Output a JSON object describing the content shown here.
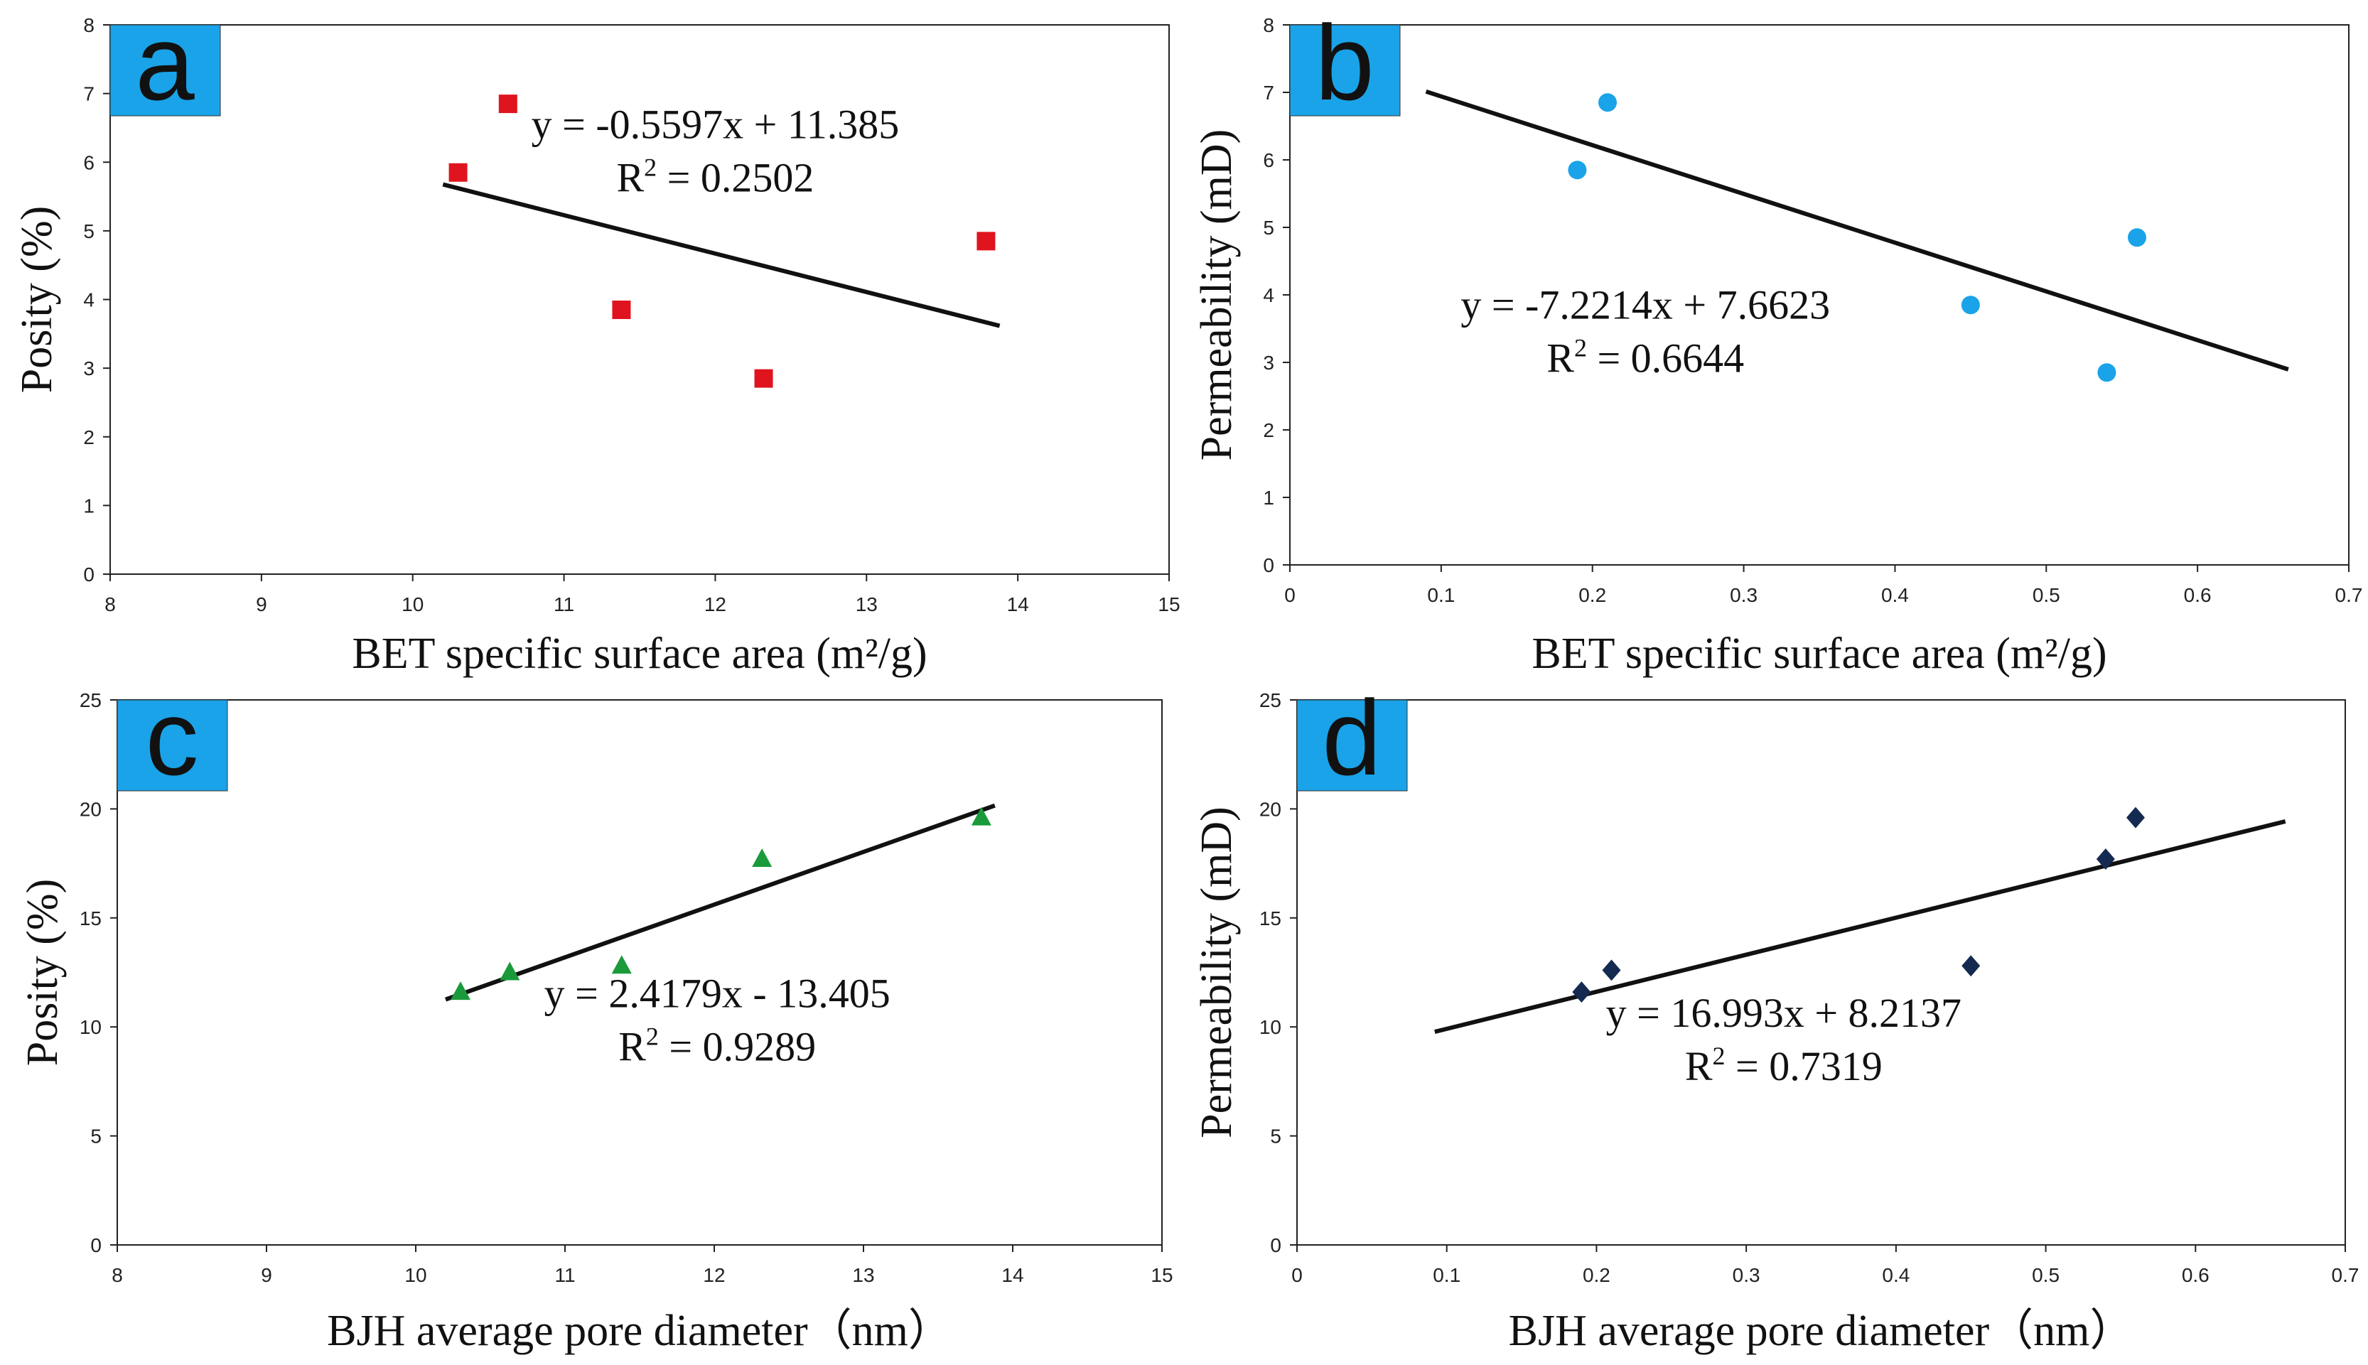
{
  "chart_data": [
    {
      "id": "a",
      "type": "scatter",
      "panel_label": "a",
      "label_box_color": "#1aa3e8",
      "xlabel": "BET specific surface area (m²/g)",
      "ylabel": "Posity (%)",
      "xlim": [
        8,
        15
      ],
      "ylim": [
        0,
        8
      ],
      "xticks": [
        8,
        9,
        10,
        11,
        12,
        13,
        14,
        15
      ],
      "yticks": [
        0,
        1,
        2,
        3,
        4,
        5,
        6,
        7,
        8
      ],
      "marker": "square",
      "marker_color": "#e0141e",
      "points": [
        {
          "x": 10.3,
          "y": 5.85
        },
        {
          "x": 10.63,
          "y": 6.85
        },
        {
          "x": 11.38,
          "y": 3.85
        },
        {
          "x": 12.32,
          "y": 2.85
        },
        {
          "x": 13.79,
          "y": 4.85
        }
      ],
      "trendline": {
        "slope": -0.5597,
        "intercept": 11.385,
        "x_range": [
          10.2,
          13.88
        ]
      },
      "equation": "y = -0.5597x + 11.385",
      "r2_prefix": "R",
      "r2_sup": "2",
      "r2_value": " = 0.2502",
      "annotation_anchor": {
        "x": 12.0,
        "y": 6.35
      }
    },
    {
      "id": "b",
      "type": "scatter",
      "panel_label": "b",
      "label_box_color": "#1aa3e8",
      "xlabel": "BET specific surface area (m²/g)",
      "ylabel": "Permeability (mD)",
      "xlim": [
        0,
        0.7
      ],
      "ylim": [
        0,
        8
      ],
      "xticks": [
        0,
        0.1,
        0.2,
        0.3,
        0.4,
        0.5,
        0.6,
        0.7
      ],
      "yticks": [
        0,
        1,
        2,
        3,
        4,
        5,
        6,
        7,
        8
      ],
      "marker": "circle",
      "marker_color": "#1aa3e8",
      "points": [
        {
          "x": 0.19,
          "y": 5.85
        },
        {
          "x": 0.21,
          "y": 6.85
        },
        {
          "x": 0.45,
          "y": 3.85
        },
        {
          "x": 0.54,
          "y": 2.85
        },
        {
          "x": 0.56,
          "y": 4.85
        }
      ],
      "trendline": {
        "slope": -7.2214,
        "intercept": 7.6623,
        "x_range": [
          0.09,
          0.66
        ]
      },
      "equation": "y = -7.2214x + 7.6623",
      "r2_prefix": "R",
      "r2_sup": "2",
      "r2_value": " = 0.6644",
      "annotation_anchor": {
        "x": 0.235,
        "y": 3.65
      }
    },
    {
      "id": "c",
      "type": "scatter",
      "panel_label": "c",
      "label_box_color": "#1aa3e8",
      "xlabel": "BJH average pore diameter（nm）",
      "ylabel": "Posity (%)",
      "xlim": [
        8,
        15
      ],
      "ylim": [
        0,
        25
      ],
      "xticks": [
        8,
        9,
        10,
        11,
        12,
        13,
        14,
        15
      ],
      "yticks": [
        0,
        5,
        10,
        15,
        20,
        25
      ],
      "marker": "triangle",
      "marker_color": "#1a9a3a",
      "points": [
        {
          "x": 10.3,
          "y": 11.6
        },
        {
          "x": 10.63,
          "y": 12.5
        },
        {
          "x": 11.38,
          "y": 12.8
        },
        {
          "x": 12.32,
          "y": 17.7
        },
        {
          "x": 13.79,
          "y": 19.6
        }
      ],
      "trendline": {
        "slope": 2.4179,
        "intercept": -13.405,
        "x_range": [
          10.2,
          13.88
        ]
      },
      "equation": "y = 2.4179x - 13.405",
      "r2_prefix": "R",
      "r2_sup": "2",
      "r2_value": " = 0.9289",
      "annotation_anchor": {
        "x": 12.02,
        "y": 10.9
      }
    },
    {
      "id": "d",
      "type": "scatter",
      "panel_label": "d",
      "label_box_color": "#1aa3e8",
      "xlabel": "BJH average pore diameter（nm）",
      "ylabel": "Permeability (mD)",
      "xlim": [
        0,
        0.7
      ],
      "ylim": [
        0,
        25
      ],
      "xticks": [
        0,
        0.1,
        0.2,
        0.3,
        0.4,
        0.5,
        0.6,
        0.7
      ],
      "yticks": [
        0,
        5,
        10,
        15,
        20,
        25
      ],
      "marker": "diamond",
      "marker_color": "#152a50",
      "points": [
        {
          "x": 0.19,
          "y": 11.6
        },
        {
          "x": 0.21,
          "y": 12.6
        },
        {
          "x": 0.45,
          "y": 12.8
        },
        {
          "x": 0.54,
          "y": 17.7
        },
        {
          "x": 0.56,
          "y": 19.6
        }
      ],
      "trendline": {
        "slope": 16.993,
        "intercept": 8.2137,
        "x_range": [
          0.092,
          0.66
        ]
      },
      "equation": "y = 16.993x + 8.2137",
      "r2_prefix": "R",
      "r2_sup": "2",
      "r2_value": " = 0.7319",
      "annotation_anchor": {
        "x": 0.325,
        "y": 10.0
      }
    }
  ]
}
